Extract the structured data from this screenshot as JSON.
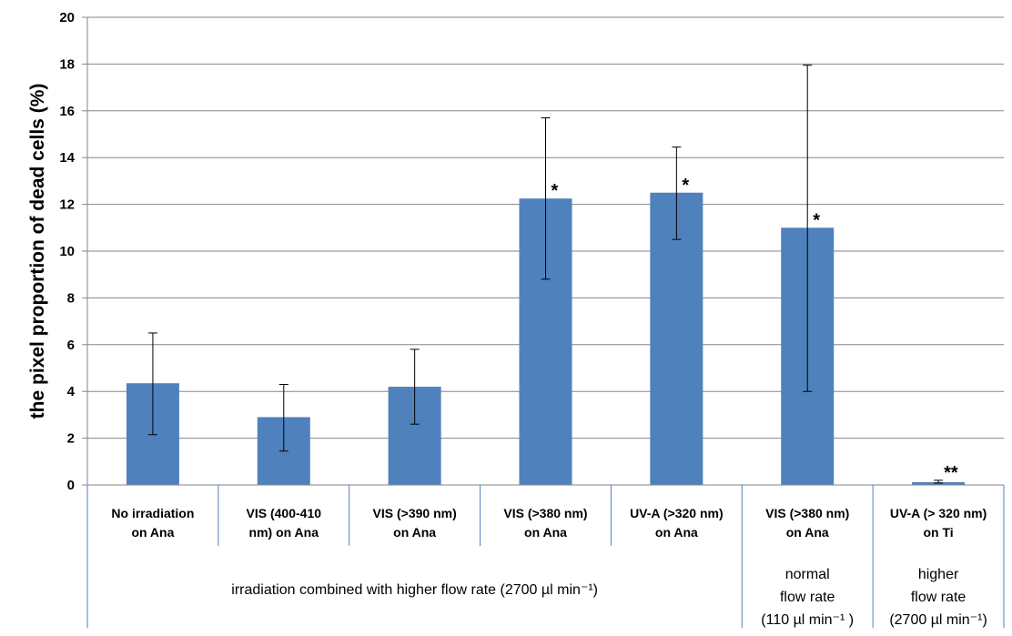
{
  "chart_data": {
    "type": "bar",
    "title": "",
    "ylabel": "the pixel proportion of dead cells (%)",
    "ylim": [
      0,
      20
    ],
    "yticks": [
      0,
      2,
      4,
      6,
      8,
      10,
      12,
      14,
      16,
      18,
      20
    ],
    "grid": "horizontal",
    "bar_color": "#4f81bd",
    "categories": [
      [
        "No irradiation",
        "on Ana"
      ],
      [
        "VIS (400-410",
        "nm) on Ana"
      ],
      [
        "VIS (>390 nm)",
        "on Ana"
      ],
      [
        "VIS (>380 nm)",
        "on Ana"
      ],
      [
        "UV-A  (>320 nm)",
        "on Ana"
      ],
      [
        "VIS (>380 nm)",
        "on Ana"
      ],
      [
        "UV-A (> 320 nm)",
        "on Ti"
      ]
    ],
    "values": [
      4.35,
      2.9,
      4.2,
      12.25,
      12.5,
      11.0,
      0.12
    ],
    "error_low": [
      2.15,
      1.45,
      2.6,
      8.8,
      10.5,
      4.0,
      0.08
    ],
    "error_high": [
      6.5,
      4.3,
      5.8,
      15.7,
      14.45,
      17.95,
      0.2
    ],
    "significance": [
      "",
      "",
      "",
      "*",
      "*",
      "*",
      "**"
    ],
    "groups": [
      {
        "lines": [
          "irradiation combined with higher flow rate (2700  µl min⁻¹)"
        ],
        "start": 0,
        "end": 4
      },
      {
        "lines": [
          "normal",
          "flow rate",
          "(110 µl min⁻¹ )"
        ],
        "start": 5,
        "end": 5
      },
      {
        "lines": [
          "higher",
          "flow rate",
          "(2700 µl min⁻¹)"
        ],
        "start": 6,
        "end": 6
      }
    ]
  }
}
